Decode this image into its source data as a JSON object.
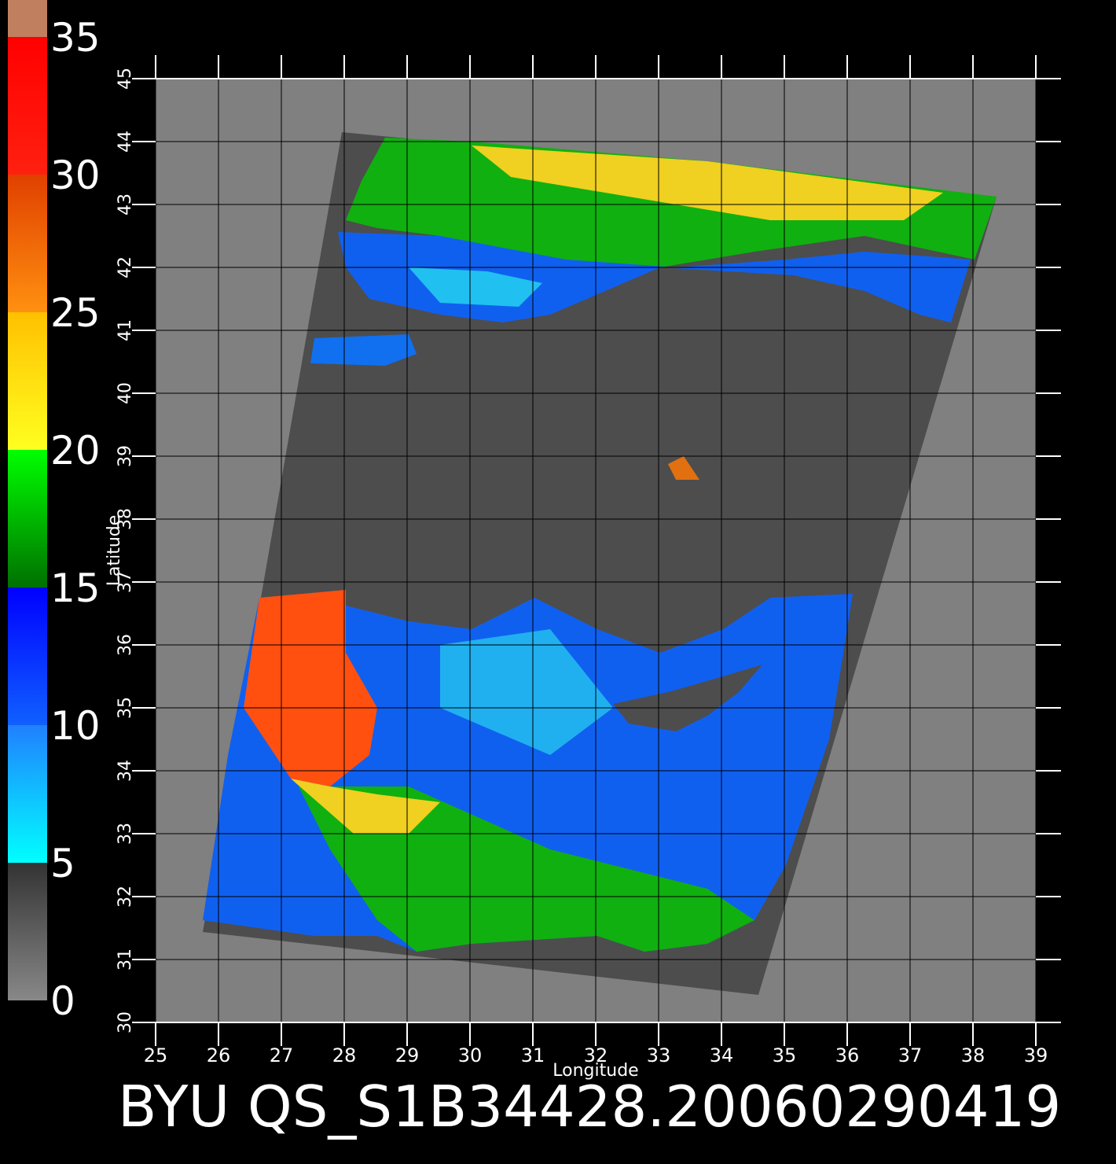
{
  "title": "BYU QS_S1B34428.20060290419",
  "x_axis": {
    "label": "Longitude",
    "lim": [
      25,
      39
    ],
    "ticks": [
      25,
      26,
      27,
      28,
      29,
      30,
      31,
      32,
      33,
      34,
      35,
      36,
      37,
      38,
      39
    ]
  },
  "y_axis": {
    "label": "Latitude",
    "lim": [
      30,
      45
    ],
    "ticks": [
      30,
      31,
      32,
      33,
      34,
      35,
      36,
      37,
      38,
      39,
      40,
      41,
      42,
      43,
      44,
      45
    ]
  },
  "colorbar": {
    "lim": [
      0,
      35
    ],
    "ticks": [
      0,
      5,
      10,
      15,
      20,
      25,
      30,
      35
    ],
    "segments": [
      [
        "#888888",
        "#333333"
      ],
      [
        "#00ffff",
        "#2080ff"
      ],
      [
        "#1060ff",
        "#0000ff"
      ],
      [
        "#007000",
        "#00ff00"
      ],
      [
        "#ffff20",
        "#ffc000"
      ],
      [
        "#ff9010",
        "#e04000"
      ],
      [
        "#ff2010",
        "#ff0000"
      ]
    ]
  },
  "grid": true
}
